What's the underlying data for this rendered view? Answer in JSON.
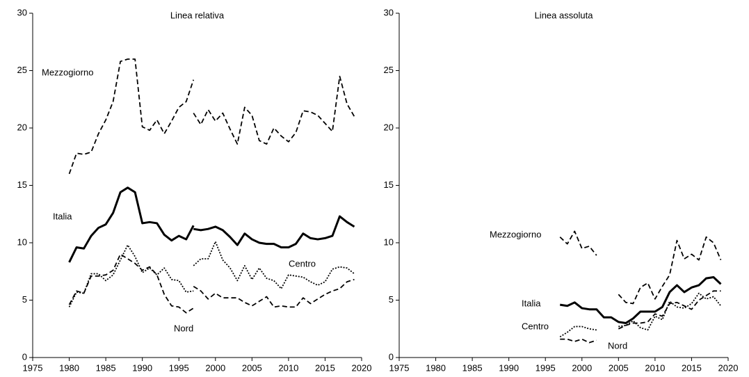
{
  "chart_data": [
    {
      "type": "line",
      "subtitle": "Linea relativa",
      "x": [
        1980,
        1981,
        1982,
        1983,
        1984,
        1985,
        1986,
        1987,
        1988,
        1989,
        1990,
        1991,
        1992,
        1993,
        1994,
        1995,
        1996,
        1997,
        1997,
        1998,
        1999,
        2000,
        2001,
        2002,
        2003,
        2004,
        2005,
        2006,
        2007,
        2008,
        2009,
        2010,
        2011,
        2012,
        2013,
        2014,
        2015,
        2016,
        2017,
        2018,
        2019
      ],
      "series": [
        {
          "name": "Mezzogiorno",
          "color": "#000000",
          "style": "dashed",
          "values": [
            16.0,
            17.8,
            17.7,
            17.9,
            19.5,
            20.7,
            22.3,
            25.8,
            26.0,
            26.0,
            20.1,
            19.8,
            20.7,
            19.5,
            20.6,
            21.8,
            22.3,
            24.2,
            21.3,
            20.3,
            21.6,
            20.6,
            21.3,
            19.9,
            18.6,
            21.8,
            21.1,
            18.9,
            18.6,
            20.0,
            19.3,
            18.8,
            19.6,
            21.5,
            21.4,
            21.1,
            20.4,
            19.7,
            24.5,
            22.1,
            21.0
          ]
        },
        {
          "name": "Italia",
          "color": "#000000",
          "style": "solid",
          "values": [
            8.3,
            9.6,
            9.5,
            10.6,
            11.3,
            11.6,
            12.6,
            14.4,
            14.8,
            14.4,
            11.7,
            11.8,
            11.7,
            10.7,
            10.2,
            10.6,
            10.3,
            11.5,
            11.2,
            11.1,
            11.2,
            11.4,
            11.1,
            10.5,
            9.8,
            10.8,
            10.3,
            10.0,
            9.9,
            9.9,
            9.6,
            9.6,
            9.9,
            10.8,
            10.4,
            10.3,
            10.4,
            10.6,
            12.3,
            11.8,
            11.4
          ]
        },
        {
          "name": "Centro",
          "color": "#000000",
          "style": "dotted",
          "values": [
            4.4,
            5.7,
            5.6,
            7.3,
            7.3,
            6.7,
            7.2,
            8.5,
            9.8,
            8.8,
            7.4,
            7.8,
            7.2,
            7.8,
            6.8,
            6.7,
            5.7,
            5.8,
            8.0,
            8.6,
            8.6,
            10.1,
            8.5,
            7.8,
            6.7,
            8.0,
            6.8,
            7.8,
            6.9,
            6.7,
            6.0,
            7.2,
            7.1,
            7.0,
            6.6,
            6.3,
            6.6,
            7.7,
            7.9,
            7.8,
            7.3
          ]
        },
        {
          "name": "Nord",
          "color": "#000000",
          "style": "dashed",
          "values": [
            4.6,
            5.8,
            5.6,
            7.1,
            7.1,
            7.2,
            7.6,
            9.0,
            8.6,
            8.2,
            7.6,
            7.9,
            7.2,
            5.5,
            4.5,
            4.4,
            3.9,
            4.3,
            6.2,
            5.8,
            5.1,
            5.6,
            5.2,
            5.2,
            5.2,
            4.8,
            4.5,
            4.9,
            5.3,
            4.4,
            4.5,
            4.4,
            4.4,
            5.2,
            4.7,
            5.1,
            5.5,
            5.8,
            6.0,
            6.6,
            6.8
          ]
        }
      ],
      "xlim": [
        1975,
        2020
      ],
      "xticks": [
        1975,
        1980,
        1985,
        1990,
        1995,
        2000,
        2005,
        2010,
        2015,
        2020
      ],
      "ylim": [
        0,
        30
      ],
      "yticks": [
        0,
        5,
        10,
        15,
        20,
        25,
        30
      ],
      "grid": false
    },
    {
      "type": "line",
      "subtitle": "Linea assoluta",
      "x": [
        1997,
        1998,
        1999,
        2000,
        2001,
        2002,
        2003,
        2004,
        2005,
        2006,
        2007,
        2008,
        2009,
        2010,
        2011,
        2012,
        2013,
        2014,
        2015,
        2016,
        2017,
        2018,
        2019
      ],
      "series": [
        {
          "name": "Mezzogiorno",
          "color": "#000000",
          "style": "dashed",
          "values": [
            10.5,
            9.9,
            11.0,
            9.5,
            9.7,
            8.9,
            null,
            null,
            5.5,
            4.8,
            4.7,
            6.1,
            6.5,
            5.1,
            6.2,
            7.2,
            10.2,
            8.6,
            9.0,
            8.5,
            10.5,
            10.0,
            8.5
          ]
        },
        {
          "name": "Italia",
          "color": "#000000",
          "style": "solid",
          "values": [
            4.6,
            4.5,
            4.8,
            4.3,
            4.2,
            4.2,
            3.5,
            3.5,
            3.1,
            3.0,
            3.4,
            4.0,
            4.0,
            4.0,
            4.4,
            5.7,
            6.3,
            5.7,
            6.1,
            6.3,
            6.9,
            7.0,
            6.4
          ]
        },
        {
          "name": "Centro",
          "color": "#000000",
          "style": "dotted",
          "values": [
            1.8,
            2.2,
            2.7,
            2.7,
            2.5,
            2.4,
            null,
            null,
            2.7,
            2.8,
            3.2,
            2.6,
            2.4,
            3.6,
            3.3,
            4.9,
            4.4,
            4.3,
            4.7,
            5.6,
            5.1,
            5.3,
            4.5
          ]
        },
        {
          "name": "Nord",
          "color": "#000000",
          "style": "dashed",
          "values": [
            1.6,
            1.6,
            1.4,
            1.6,
            1.3,
            1.5,
            null,
            null,
            2.5,
            2.8,
            3.0,
            3.0,
            3.1,
            3.8,
            3.6,
            4.7,
            4.8,
            4.5,
            4.2,
            5.0,
            5.4,
            5.8,
            5.8
          ]
        }
      ],
      "xlim": [
        1975,
        2020
      ],
      "xticks": [
        1975,
        1980,
        1985,
        1990,
        1995,
        2000,
        2005,
        2010,
        2015,
        2020
      ],
      "ylim": [
        0,
        30
      ],
      "yticks": [
        0,
        5,
        10,
        15,
        20,
        25,
        30
      ],
      "grid": false
    }
  ]
}
